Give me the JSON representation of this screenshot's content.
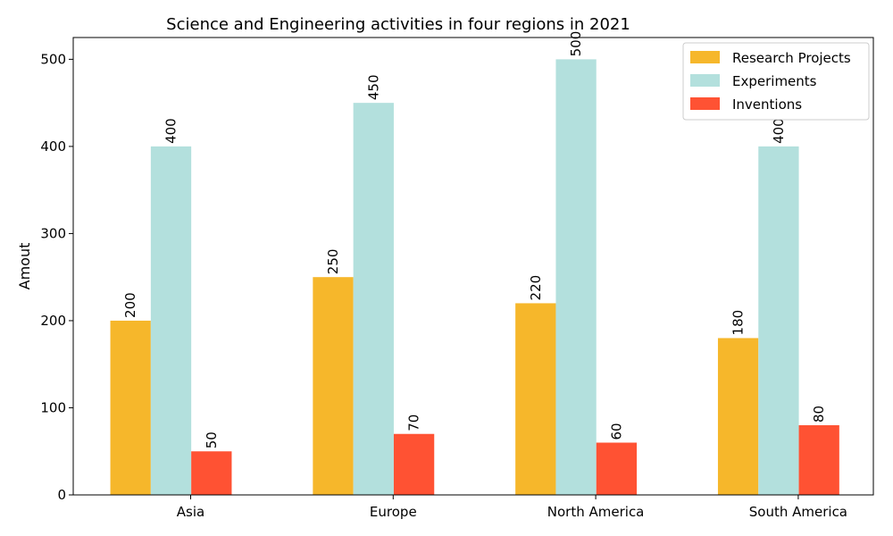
{
  "chart_data": {
    "type": "bar",
    "title": "Science and Engineering activities in four regions in 2021",
    "xlabel": "",
    "ylabel": "Amout",
    "categories": [
      "Asia",
      "Europe",
      "North America",
      "South America"
    ],
    "series": [
      {
        "name": "Research Projects",
        "color": "#f6b72b",
        "values": [
          200,
          250,
          220,
          180
        ]
      },
      {
        "name": "Experiments",
        "color": "#b3e0dd",
        "values": [
          400,
          450,
          500,
          400
        ]
      },
      {
        "name": "Inventions",
        "color": "#ff5233",
        "values": [
          50,
          70,
          60,
          80
        ]
      }
    ],
    "ylim": [
      0,
      525
    ],
    "yticks": [
      0,
      100,
      200,
      300,
      400,
      500
    ],
    "grid": false,
    "legend_position": "top-right"
  }
}
